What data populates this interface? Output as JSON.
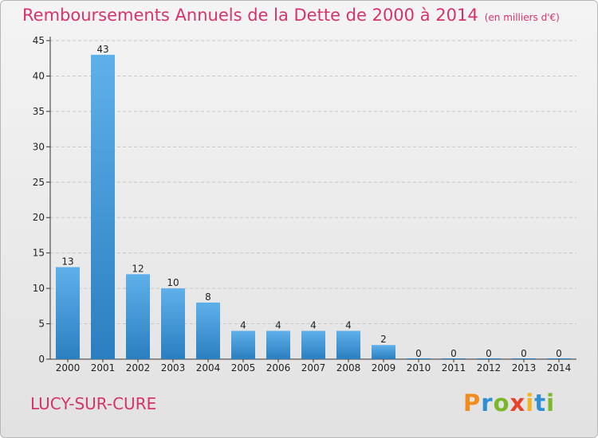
{
  "header": {
    "title": "Remboursements Annuels de la Dette de 2000 à 2014",
    "unit": "(en milliers d'€)"
  },
  "footer": {
    "commune": "LUCY-SUR-CURE",
    "logo": "Proxiti"
  },
  "colors": {
    "title": "#d6336c",
    "bar_top": "#5fb0ea",
    "bar_bottom": "#2a7fc0"
  },
  "chart_data": {
    "type": "bar",
    "title": "Remboursements Annuels de la Dette de 2000 à 2014",
    "subtitle": "(en milliers d'€)",
    "categories": [
      "2000",
      "2001",
      "2002",
      "2003",
      "2004",
      "2005",
      "2006",
      "2007",
      "2008",
      "2009",
      "2010",
      "2011",
      "2012",
      "2013",
      "2014"
    ],
    "values": [
      13,
      43,
      12,
      10,
      8,
      4,
      4,
      4,
      4,
      2,
      0,
      0,
      0,
      0,
      0
    ],
    "yticks": [
      0,
      5,
      10,
      15,
      20,
      25,
      30,
      35,
      40,
      45
    ],
    "ylim": [
      0,
      45
    ],
    "grid": "horizontal dashed",
    "data_labels": true
  }
}
